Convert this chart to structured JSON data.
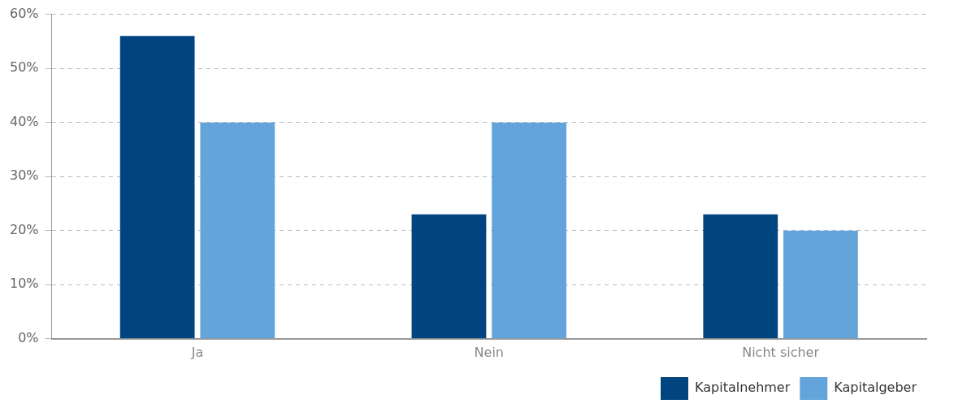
{
  "chart_data": {
    "type": "bar",
    "categories": [
      "Ja",
      "Nein",
      "Nicht sicher"
    ],
    "series": [
      {
        "name": "Kapitalnehmer",
        "color": "#00457f",
        "values": [
          56,
          23,
          23
        ]
      },
      {
        "name": "Kapitalgeber",
        "color": "#63a5da",
        "values": [
          40,
          40,
          20
        ]
      }
    ],
    "ylim": [
      0,
      60
    ],
    "yticks": [
      {
        "value": 0,
        "label": "0%"
      },
      {
        "value": 10,
        "label": "10%"
      },
      {
        "value": 20,
        "label": "20%"
      },
      {
        "value": 30,
        "label": "30%"
      },
      {
        "value": 40,
        "label": "40%"
      },
      {
        "value": 50,
        "label": "50%"
      },
      {
        "value": 60,
        "label": "60%"
      }
    ],
    "grid": "y",
    "legend": "bottom right"
  }
}
